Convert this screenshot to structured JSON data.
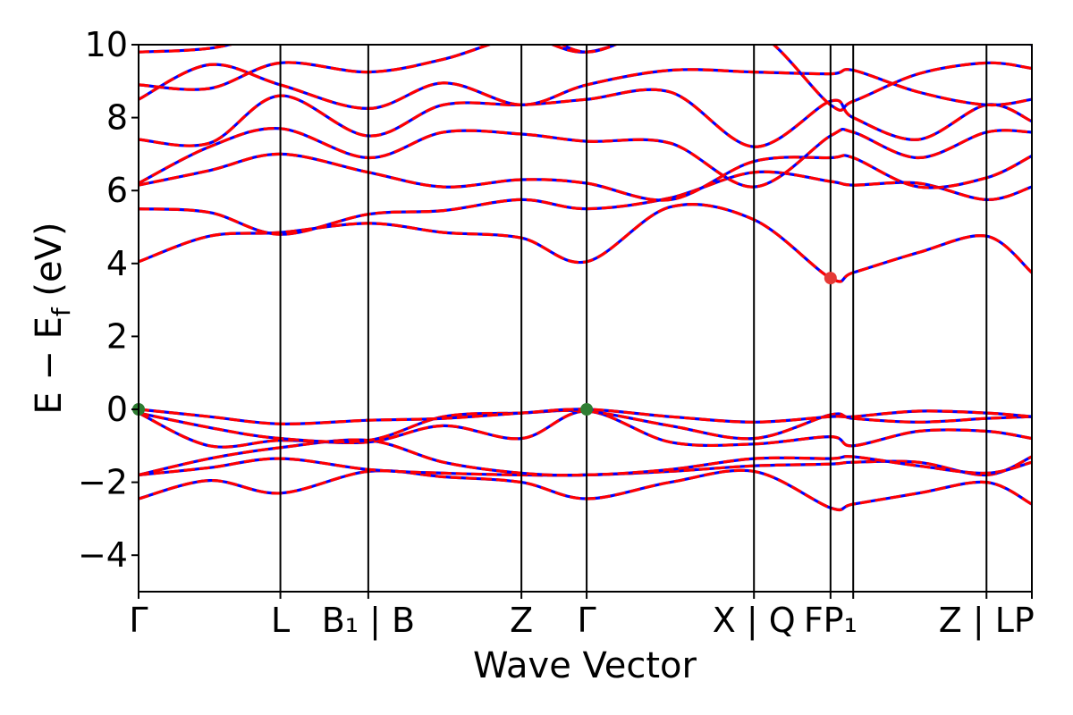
{
  "chart_data": {
    "type": "line",
    "title": "",
    "xlabel": "Wave Vector",
    "ylabel": "E − E_f (eV)",
    "ylabel_parts": {
      "main": "E  −  E",
      "sub": "f",
      "unit": " (eV)"
    },
    "ylim": [
      -5,
      10
    ],
    "yticks": [
      -4,
      -2,
      0,
      2,
      4,
      6,
      8,
      10
    ],
    "ytick_labels": [
      "−4",
      "−2",
      "0",
      "2",
      "4",
      "6",
      "8",
      "10"
    ],
    "xlim": [
      0,
      6.3
    ],
    "kpoints": [
      {
        "x": 0.0,
        "label": "Γ"
      },
      {
        "x": 1.0,
        "label": "L"
      },
      {
        "x": 1.62,
        "label": "B₁ | B"
      },
      {
        "x": 2.7,
        "label": "Z"
      },
      {
        "x": 3.16,
        "label": "Γ"
      },
      {
        "x": 4.34,
        "label": "X | Q"
      },
      {
        "x": 4.88,
        "label": "FP₁"
      },
      {
        "x": 5.04,
        "label": ""
      },
      {
        "x": 5.98,
        "label": "Z | LP"
      },
      {
        "x": 6.3,
        "label": ""
      }
    ],
    "series_colors": {
      "primary": "#ff0000",
      "overlay": "#0000ff"
    },
    "band_nodes_x": [
      0,
      0.5,
      1.0,
      1.62,
      2.15,
      2.7,
      3.16,
      3.75,
      4.34,
      4.88,
      5.04,
      5.5,
      5.98,
      6.3
    ],
    "bands": [
      {
        "values": [
          -2.45,
          -1.95,
          -2.3,
          -1.7,
          -1.85,
          -2.0,
          -2.45,
          -2.0,
          -1.7,
          -2.7,
          -2.6,
          -2.3,
          -2.0,
          -2.6
        ]
      },
      {
        "values": [
          -1.8,
          -1.6,
          -1.35,
          -1.65,
          -1.75,
          -1.8,
          -1.8,
          -1.7,
          -1.55,
          -1.5,
          -1.45,
          -1.45,
          -1.8,
          -1.3
        ]
      },
      {
        "values": [
          -1.8,
          -1.35,
          -1.05,
          -0.85,
          -1.45,
          -1.75,
          -1.8,
          -1.65,
          -1.35,
          -1.35,
          -1.3,
          -1.55,
          -1.75,
          -1.45
        ]
      },
      {
        "values": [
          -0.1,
          -1.0,
          -0.85,
          -0.9,
          -0.45,
          -0.8,
          -0.05,
          -0.9,
          -0.95,
          -0.75,
          -1.0,
          -0.6,
          -0.6,
          -0.8
        ]
      },
      {
        "values": [
          -0.1,
          -0.5,
          -0.8,
          -0.85,
          -0.2,
          -0.1,
          -0.05,
          -0.45,
          -0.8,
          -0.15,
          -0.25,
          -0.35,
          -0.25,
          -0.2
        ]
      },
      {
        "values": [
          0.0,
          -0.2,
          -0.4,
          -0.3,
          -0.25,
          -0.1,
          0.0,
          -0.2,
          -0.35,
          -0.2,
          -0.2,
          -0.05,
          -0.1,
          -0.2
        ]
      },
      {
        "values": [
          4.05,
          4.75,
          4.85,
          5.1,
          4.85,
          4.7,
          4.05,
          5.55,
          5.2,
          3.6,
          3.75,
          4.3,
          4.75,
          3.75
        ]
      },
      {
        "values": [
          5.5,
          5.4,
          4.8,
          5.35,
          5.45,
          5.75,
          5.5,
          5.8,
          6.5,
          6.25,
          6.15,
          6.2,
          5.75,
          6.1
        ]
      },
      {
        "values": [
          6.15,
          6.55,
          7.0,
          6.5,
          6.1,
          6.3,
          6.2,
          5.75,
          6.8,
          6.9,
          6.9,
          6.1,
          6.35,
          6.95
        ]
      },
      {
        "values": [
          6.2,
          7.2,
          7.7,
          6.9,
          7.6,
          7.55,
          7.35,
          7.3,
          6.1,
          7.5,
          7.6,
          6.9,
          7.6,
          7.6
        ]
      },
      {
        "values": [
          7.4,
          7.3,
          8.6,
          7.5,
          8.35,
          8.35,
          8.5,
          8.7,
          7.2,
          8.45,
          8.0,
          7.4,
          8.35,
          7.9
        ]
      },
      {
        "values": [
          8.5,
          9.45,
          8.9,
          8.25,
          8.95,
          8.35,
          8.9,
          9.3,
          9.25,
          9.2,
          9.3,
          8.7,
          8.35,
          8.5
        ]
      },
      {
        "values": [
          8.9,
          8.8,
          9.5,
          9.25,
          9.6,
          10.2,
          9.8,
          10.5,
          10.4,
          8.35,
          8.45,
          9.2,
          9.5,
          9.35
        ]
      },
      {
        "values": [
          9.8,
          9.9,
          10.3,
          10.5,
          10.4,
          10.6,
          9.8,
          10.6,
          10.6,
          10.5,
          10.6,
          10.4,
          10.3,
          10.0
        ]
      }
    ],
    "markers": [
      {
        "x": 0.0,
        "y": 0.0,
        "color": "#2e7d32",
        "kind": "vbm"
      },
      {
        "x": 3.16,
        "y": 0.0,
        "color": "#2e7d32",
        "kind": "vbm"
      },
      {
        "x": 4.88,
        "y": 3.6,
        "color": "#e53935",
        "kind": "cbm"
      }
    ],
    "grid": false,
    "legend": "none"
  }
}
